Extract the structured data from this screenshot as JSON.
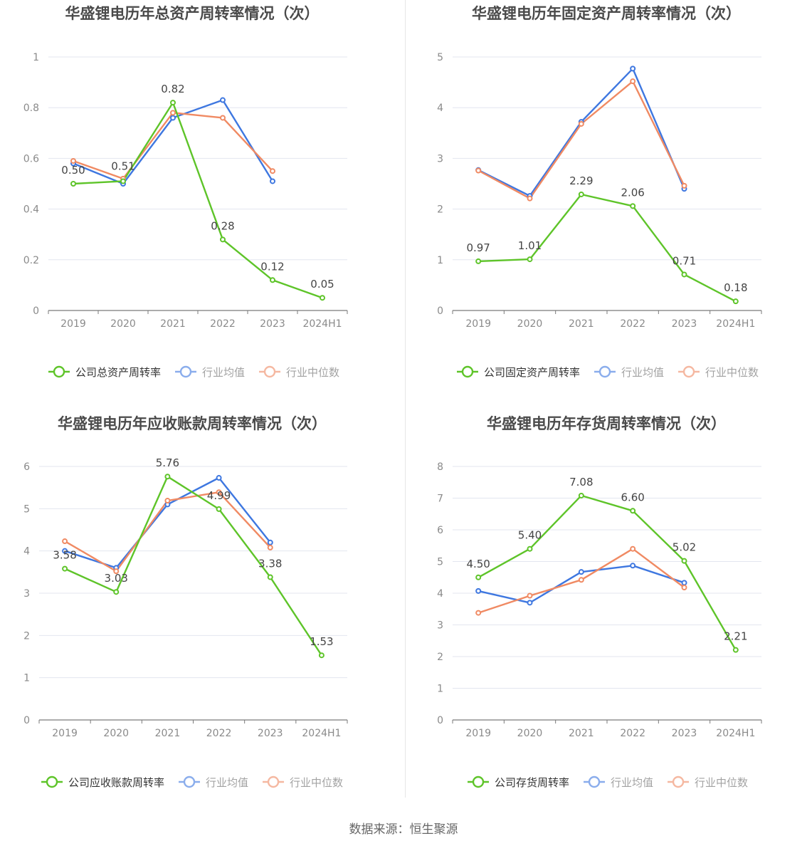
{
  "colors": {
    "company": "#5ec429",
    "avg": "#3e77e0",
    "median": "#f08a63",
    "grid": "#e3e6ef",
    "axis": "#7a7a7a",
    "tick": "#8a8a8a",
    "title": "#4a4a4a",
    "label": "#444444"
  },
  "source": "数据来源：恒生聚源",
  "chart_data": [
    {
      "type": "line",
      "title": "华盛锂电历年总资产周转率情况（次）",
      "categories": [
        "2019",
        "2020",
        "2021",
        "2022",
        "2023",
        "2024H1"
      ],
      "ylim": [
        0,
        1
      ],
      "yticks": [
        "0",
        "0.2",
        "0.4",
        "0.6",
        "0.8",
        "1"
      ],
      "series": [
        {
          "name": "公司总资产周转率",
          "key": "company",
          "values": [
            0.5,
            0.51,
            0.82,
            0.28,
            0.12,
            0.05
          ],
          "labels": [
            "0.50",
            "0.51",
            "0.82",
            "0.28",
            "0.12",
            "0.05"
          ]
        },
        {
          "name": "行业均值",
          "key": "avg",
          "values": [
            0.58,
            0.5,
            0.76,
            0.83,
            0.51,
            null
          ]
        },
        {
          "name": "行业中位数",
          "key": "median",
          "values": [
            0.59,
            0.52,
            0.78,
            0.76,
            0.55,
            null
          ]
        }
      ]
    },
    {
      "type": "line",
      "title": "华盛锂电历年固定资产周转率情况（次）",
      "categories": [
        "2019",
        "2020",
        "2021",
        "2022",
        "2023",
        "2024H1"
      ],
      "ylim": [
        0,
        5
      ],
      "yticks": [
        "0",
        "1",
        "2",
        "3",
        "4",
        "5"
      ],
      "series": [
        {
          "name": "公司固定资产周转率",
          "key": "company",
          "values": [
            0.97,
            1.01,
            2.29,
            2.06,
            0.71,
            0.18
          ],
          "labels": [
            "0.97",
            "1.01",
            "2.29",
            "2.06",
            "0.71",
            "0.18"
          ]
        },
        {
          "name": "行业均值",
          "key": "avg",
          "values": [
            2.77,
            2.26,
            3.72,
            4.77,
            2.4,
            null
          ]
        },
        {
          "name": "行业中位数",
          "key": "median",
          "values": [
            2.76,
            2.21,
            3.68,
            4.52,
            2.46,
            null
          ]
        }
      ]
    },
    {
      "type": "line",
      "title": "华盛锂电历年应收账款周转率情况（次）",
      "categories": [
        "2019",
        "2020",
        "2021",
        "2022",
        "2023",
        "2024H1"
      ],
      "ylim": [
        0,
        6
      ],
      "yticks": [
        "0",
        "1",
        "2",
        "3",
        "4",
        "5",
        "6"
      ],
      "series": [
        {
          "name": "公司应收账款周转率",
          "key": "company",
          "values": [
            3.58,
            3.03,
            5.76,
            4.99,
            3.38,
            1.53
          ],
          "labels": [
            "3.58",
            "3.03",
            "5.76",
            "4.99",
            "3.38",
            "1.53"
          ]
        },
        {
          "name": "行业均值",
          "key": "avg",
          "values": [
            4.0,
            3.6,
            5.1,
            5.73,
            4.2,
            null
          ]
        },
        {
          "name": "行业中位数",
          "key": "median",
          "values": [
            4.23,
            3.52,
            5.19,
            5.39,
            4.08,
            null
          ]
        }
      ]
    },
    {
      "type": "line",
      "title": "华盛锂电历年存货周转率情况（次）",
      "categories": [
        "2019",
        "2020",
        "2021",
        "2022",
        "2023",
        "2024H1"
      ],
      "ylim": [
        0,
        8
      ],
      "yticks": [
        "0",
        "1",
        "2",
        "3",
        "4",
        "5",
        "6",
        "7",
        "8"
      ],
      "series": [
        {
          "name": "公司存货周转率",
          "key": "company",
          "values": [
            4.5,
            5.4,
            7.08,
            6.6,
            5.02,
            2.21
          ],
          "labels": [
            "4.50",
            "5.40",
            "7.08",
            "6.60",
            "5.02",
            "2.21"
          ]
        },
        {
          "name": "行业均值",
          "key": "avg",
          "values": [
            4.07,
            3.7,
            4.67,
            4.87,
            4.33,
            null
          ]
        },
        {
          "name": "行业中位数",
          "key": "median",
          "values": [
            3.38,
            3.92,
            4.42,
            5.4,
            4.18,
            null
          ]
        }
      ]
    }
  ]
}
